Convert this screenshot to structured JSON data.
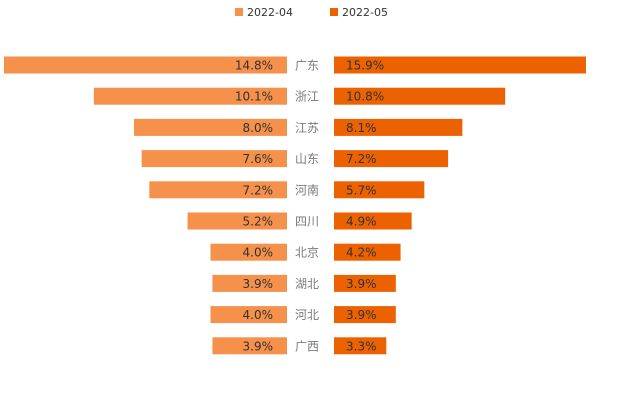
{
  "chart_data": {
    "type": "bar",
    "orientation": "horizontal",
    "layout": "butterfly",
    "legend_position": "top-center",
    "categories": [
      "广东",
      "浙江",
      "江苏",
      "山东",
      "河南",
      "四川",
      "北京",
      "湖北",
      "河北",
      "广西"
    ],
    "series": [
      {
        "name": "2022-04",
        "color": "#F5914B",
        "side": "left",
        "values": [
          14.8,
          10.1,
          8.0,
          7.6,
          7.2,
          5.2,
          4.0,
          3.9,
          4.0,
          3.9
        ],
        "labels": [
          "14.8%",
          "10.1%",
          "8.0%",
          "7.6%",
          "7.2%",
          "5.2%",
          "4.0%",
          "3.9%",
          "4.0%",
          "3.9%"
        ]
      },
      {
        "name": "2022-05",
        "color": "#EC6100",
        "side": "right",
        "values": [
          15.9,
          10.8,
          8.1,
          7.2,
          5.7,
          4.9,
          4.2,
          3.9,
          3.9,
          3.3
        ],
        "labels": [
          "15.9%",
          "10.8%",
          "8.1%",
          "7.2%",
          "5.7%",
          "4.9%",
          "4.2%",
          "3.9%",
          "3.9%",
          "3.3%"
        ]
      }
    ],
    "unit": "%",
    "label_color": "#333333",
    "category_label_color": "#7a7a7a",
    "legend_text_color": "#333333"
  }
}
